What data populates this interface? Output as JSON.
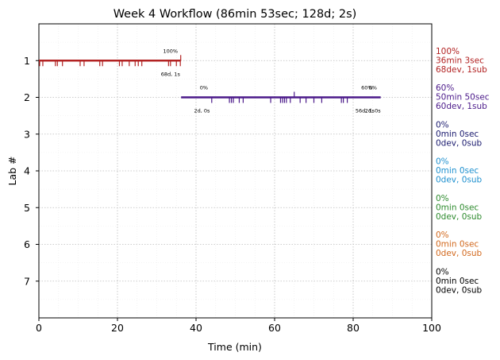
{
  "chart_data": {
    "type": "timeline",
    "title": "Week 4 Workflow (86min 53sec; 128d; 2s)",
    "xlabel": "Time (min)",
    "ylabel": "Lab #",
    "xlim": [
      0,
      100
    ],
    "ylim": [
      8,
      0
    ],
    "xticks": [
      0,
      20,
      40,
      60,
      80,
      100
    ],
    "yticks": [
      1,
      2,
      3,
      4,
      5,
      6,
      7
    ],
    "grid": true,
    "labs": [
      {
        "lab": 1,
        "color": "#b22222",
        "bar": [
          0,
          36.1
        ],
        "ticks_down": [
          0.2,
          1.0,
          4.2,
          4.7,
          6.0,
          10.5,
          11.5,
          15.5,
          16.2,
          20.5,
          21.2,
          23.0,
          24.5,
          25.3,
          26.2,
          33.0,
          33.5,
          35.0,
          36.0
        ],
        "ticks_up": [
          36.1
        ],
        "annotations": [
          {
            "text": "100%",
            "x": 33.5,
            "pos": "above"
          },
          {
            "text": "68d, 1s",
            "x": 33.5,
            "pos": "below"
          }
        ],
        "side": [
          "100%",
          "36min 3sec",
          "68dev, 1sub"
        ]
      },
      {
        "lab": 2,
        "color": "#4b1a8a",
        "bar": [
          36.2,
          87.0
        ],
        "ticks_down": [
          44.0,
          48.5,
          49.0,
          49.5,
          51.0,
          52.0,
          59.0,
          61.5,
          62.0,
          62.5,
          63.0,
          64.0,
          66.5,
          68.0,
          70.0,
          72.0,
          77.0,
          77.5,
          78.5
        ],
        "ticks_up": [
          65.0
        ],
        "annotations": [
          {
            "text": "0%",
            "x": 42.0,
            "pos": "above"
          },
          {
            "text": "2d, 0s",
            "x": 41.5,
            "pos": "below"
          },
          {
            "text": "60%",
            "x": 83.5,
            "pos": "above"
          },
          {
            "text": "0%",
            "x": 85.0,
            "pos": "above"
          },
          {
            "text": "56d, 1s",
            "x": 83.0,
            "pos": "below"
          },
          {
            "text": "2d, 0s",
            "x": 85.0,
            "pos": "below"
          }
        ],
        "side": [
          "60%",
          "50min 50sec",
          "60dev, 1sub"
        ]
      },
      {
        "lab": 3,
        "color": "#1a1a6e",
        "bar": null,
        "ticks_down": [],
        "ticks_up": [],
        "annotations": [],
        "side": [
          "0%",
          "0min 0sec",
          "0dev, 0sub"
        ]
      },
      {
        "lab": 4,
        "color": "#1e90cf",
        "bar": null,
        "ticks_down": [],
        "ticks_up": [],
        "annotations": [],
        "side": [
          "0%",
          "0min 0sec",
          "0dev, 0sub"
        ]
      },
      {
        "lab": 5,
        "color": "#2e8b2e",
        "bar": null,
        "ticks_down": [],
        "ticks_up": [],
        "annotations": [],
        "side": [
          "0%",
          "0min 0sec",
          "0dev, 0sub"
        ]
      },
      {
        "lab": 6,
        "color": "#d2691e",
        "bar": null,
        "ticks_down": [],
        "ticks_up": [],
        "annotations": [],
        "side": [
          "0%",
          "0min 0sec",
          "0dev, 0sub"
        ]
      },
      {
        "lab": 7,
        "color": "#000000",
        "bar": null,
        "ticks_down": [],
        "ticks_up": [],
        "annotations": [],
        "side": [
          "0%",
          "0min 0sec",
          "0dev, 0sub"
        ]
      }
    ]
  }
}
